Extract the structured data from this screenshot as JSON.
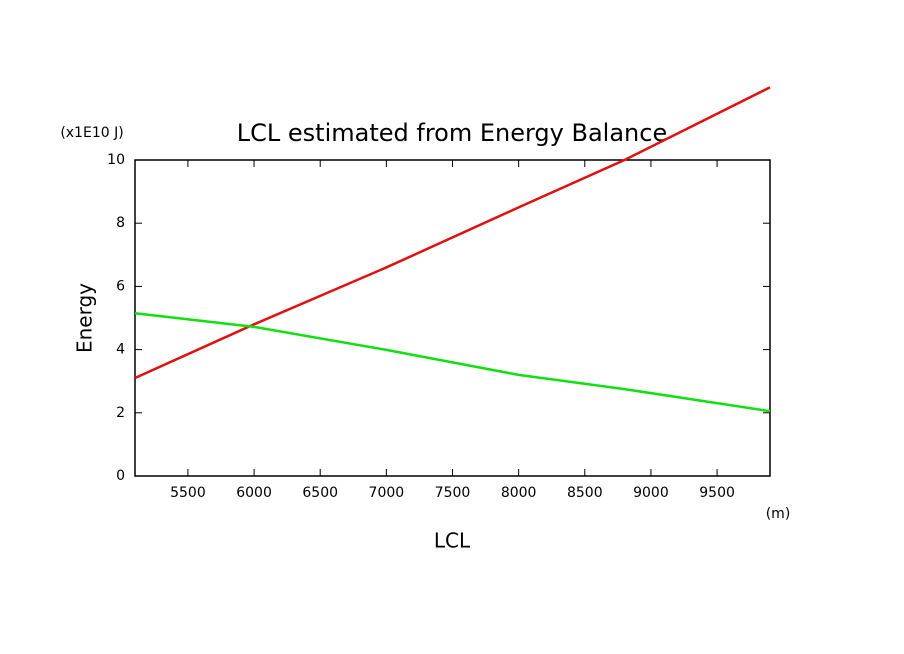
{
  "chart_data": {
    "type": "line",
    "title": "LCL estimated from Energy Balance",
    "y_unit": "(x1E10 J)",
    "x_unit": "(m)",
    "xlabel": "LCL",
    "ylabel": "Energy",
    "x": [
      5100,
      6000,
      7000,
      8000,
      8800,
      9900
    ],
    "series": [
      {
        "color": "#e01010",
        "values": [
          3.1,
          4.8,
          6.6,
          8.5,
          10.0,
          12.3
        ]
      },
      {
        "color": "#10e010",
        "values": [
          5.15,
          4.72,
          3.99,
          3.2,
          2.75,
          2.05
        ]
      }
    ],
    "xlim": [
      5100,
      9900
    ],
    "xticks": [
      5500,
      6000,
      6500,
      7000,
      7500,
      8000,
      8500,
      9000,
      9500
    ],
    "ylim": [
      0,
      10
    ],
    "yticks": [
      0,
      2,
      4,
      6,
      8,
      10
    ]
  }
}
